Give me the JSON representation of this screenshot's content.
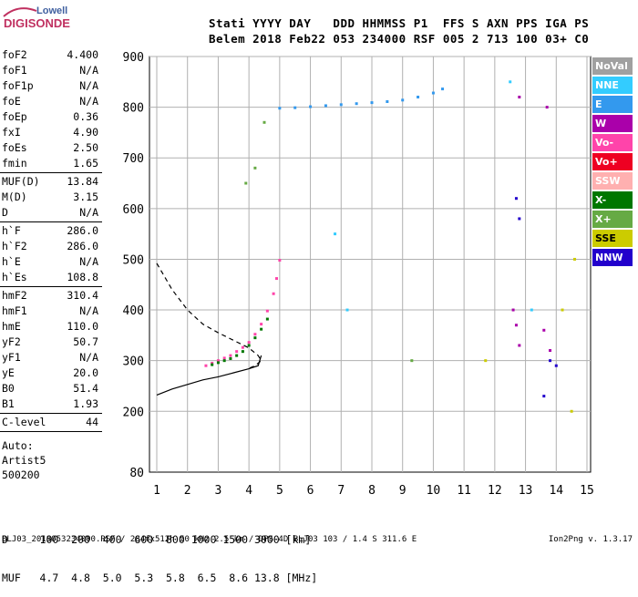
{
  "logo": {
    "line1": "Lowell",
    "line2": "DIGISONDE"
  },
  "header": {
    "labels": "Stati YYYY DAY   DDD HHMMSS P1  FFS S AXN PPS IGA PS",
    "values": "Belem 2018 Feb22 053 234000 RSF 005 2 713 100 03+ C0"
  },
  "params_group1": [
    {
      "name": "foF2",
      "value": "4.400"
    },
    {
      "name": "foF1",
      "value": "N/A"
    },
    {
      "name": "foF1p",
      "value": "N/A"
    },
    {
      "name": "foE",
      "value": "N/A"
    },
    {
      "name": "foEp",
      "value": "0.36"
    },
    {
      "name": "fxI",
      "value": "4.90"
    },
    {
      "name": "foEs",
      "value": "2.50"
    },
    {
      "name": "fmin",
      "value": "1.65"
    }
  ],
  "params_group2": [
    {
      "name": "MUF(D)",
      "value": "13.84"
    },
    {
      "name": "M(D)",
      "value": "3.15"
    },
    {
      "name": "D",
      "value": "N/A"
    }
  ],
  "params_group3": [
    {
      "name": "h`F",
      "value": "286.0"
    },
    {
      "name": "h`F2",
      "value": "286.0"
    },
    {
      "name": "h`E",
      "value": "N/A"
    },
    {
      "name": "h`Es",
      "value": "108.8"
    }
  ],
  "params_group4": [
    {
      "name": "hmF2",
      "value": "310.4"
    },
    {
      "name": "hmF1",
      "value": "N/A"
    },
    {
      "name": "hmE",
      "value": "110.0"
    },
    {
      "name": "yF2",
      "value": "50.7"
    },
    {
      "name": "yF1",
      "value": "N/A"
    },
    {
      "name": "yE",
      "value": "20.0"
    },
    {
      "name": "B0",
      "value": "51.4"
    },
    {
      "name": "B1",
      "value": "1.93"
    }
  ],
  "params_group5": [
    {
      "name": "C-level",
      "value": "44"
    }
  ],
  "artist": {
    "line1": "Auto:",
    "line2": "Artist5",
    "line3": "500200"
  },
  "legend": [
    {
      "label": "NoVal",
      "color": "#a0a0a0"
    },
    {
      "label": "NNE",
      "color": "#33ccff"
    },
    {
      "label": "E",
      "color": "#3399ee"
    },
    {
      "label": "W",
      "color": "#aa00aa"
    },
    {
      "label": "Vo-",
      "color": "#ff44aa"
    },
    {
      "label": "Vo+",
      "color": "#ee0022"
    },
    {
      "label": "SSW",
      "color": "#ffb0b0"
    },
    {
      "label": "X-",
      "color": "#007700"
    },
    {
      "label": "X+",
      "color": "#66aa44"
    },
    {
      "label": "SSE",
      "color": "#cccc00"
    },
    {
      "label": "NNW",
      "color": "#2200cc"
    }
  ],
  "distance_table": {
    "row1": "D     100  200  400  600  800 1000 1500 3000 [km]",
    "row2": "MUF   4.7  4.8  5.0  5.3  5.8  6.5  8.6 13.8 [MHz]"
  },
  "footer": {
    "left": "BLJ03_2018053234000.RSF / 284fx512h 50 kHz 2.5 km / DPS-4D BLJ03 103 / 1.4 S 311.6 E",
    "right": "Ion2Png v. 1.3.17"
  },
  "chart_data": {
    "type": "scatter",
    "xlabel": "",
    "ylabel": "",
    "xlim": [
      1,
      15
    ],
    "ylim": [
      80,
      900
    ],
    "x_ticks": [
      "1",
      "2",
      "3",
      "4",
      "5",
      "6",
      "7",
      "8",
      "9",
      "10",
      "11",
      "12",
      "13",
      "14",
      "15"
    ],
    "y_ticks": [
      "80",
      "200",
      "300",
      "400",
      "500",
      "600",
      "700",
      "800",
      "900"
    ],
    "grid": true,
    "series": [
      {
        "name": "Vo-",
        "color": "#ff44aa",
        "points": [
          [
            2.6,
            290
          ],
          [
            2.8,
            295
          ],
          [
            3.0,
            300
          ],
          [
            3.2,
            305
          ],
          [
            3.4,
            310
          ],
          [
            3.6,
            318
          ],
          [
            3.8,
            326
          ],
          [
            4.0,
            336
          ],
          [
            4.2,
            352
          ],
          [
            4.4,
            372
          ],
          [
            4.6,
            398
          ],
          [
            4.8,
            432
          ],
          [
            4.9,
            462
          ],
          [
            5.0,
            498
          ]
        ]
      },
      {
        "name": "X-",
        "color": "#007700",
        "points": [
          [
            2.8,
            292
          ],
          [
            3.0,
            296
          ],
          [
            3.2,
            300
          ],
          [
            3.4,
            304
          ],
          [
            3.6,
            310
          ],
          [
            3.8,
            318
          ],
          [
            4.0,
            330
          ],
          [
            4.2,
            345
          ],
          [
            4.4,
            362
          ],
          [
            4.6,
            382
          ]
        ]
      },
      {
        "name": "E",
        "color": "#3399ee",
        "points": [
          [
            5.0,
            798
          ],
          [
            5.5,
            799
          ],
          [
            6.0,
            801
          ],
          [
            6.5,
            803
          ],
          [
            7.0,
            805
          ],
          [
            7.5,
            807
          ],
          [
            8.0,
            809
          ],
          [
            8.5,
            811
          ],
          [
            9.0,
            814
          ],
          [
            9.5,
            820
          ],
          [
            10.0,
            828
          ],
          [
            10.3,
            836
          ]
        ]
      },
      {
        "name": "W",
        "color": "#aa00aa",
        "points": [
          [
            12.6,
            400
          ],
          [
            12.7,
            370
          ],
          [
            12.8,
            330
          ],
          [
            13.6,
            360
          ],
          [
            13.8,
            320
          ],
          [
            12.8,
            820
          ],
          [
            13.7,
            800
          ]
        ]
      },
      {
        "name": "NNW",
        "color": "#2200cc",
        "points": [
          [
            12.7,
            620
          ],
          [
            12.8,
            580
          ],
          [
            13.8,
            300
          ],
          [
            14.0,
            290
          ],
          [
            13.6,
            230
          ]
        ]
      },
      {
        "name": "SSE",
        "color": "#cccc00",
        "points": [
          [
            11.7,
            300
          ],
          [
            14.2,
            400
          ],
          [
            14.5,
            200
          ],
          [
            14.6,
            500
          ]
        ]
      },
      {
        "name": "NNE",
        "color": "#33ccff",
        "points": [
          [
            6.8,
            550
          ],
          [
            7.2,
            400
          ],
          [
            12.5,
            850
          ],
          [
            13.2,
            400
          ]
        ]
      },
      {
        "name": "X+",
        "color": "#66aa44",
        "points": [
          [
            3.9,
            650
          ],
          [
            4.2,
            680
          ],
          [
            4.5,
            770
          ],
          [
            9.3,
            300
          ]
        ]
      }
    ],
    "profile_curve": [
      [
        1.0,
        232
      ],
      [
        1.5,
        244
      ],
      [
        2.0,
        253
      ],
      [
        2.5,
        262
      ],
      [
        3.0,
        268
      ],
      [
        3.5,
        276
      ],
      [
        4.0,
        284
      ],
      [
        4.3,
        290
      ],
      [
        4.4,
        310
      ]
    ],
    "dashed_curve": [
      [
        1.0,
        492
      ],
      [
        1.5,
        440
      ],
      [
        2.0,
        400
      ],
      [
        2.5,
        372
      ],
      [
        3.0,
        355
      ],
      [
        3.5,
        340
      ],
      [
        4.0,
        325
      ],
      [
        4.3,
        310
      ],
      [
        4.4,
        300
      ],
      [
        4.2,
        290
      ],
      [
        4.0,
        285
      ]
    ]
  }
}
